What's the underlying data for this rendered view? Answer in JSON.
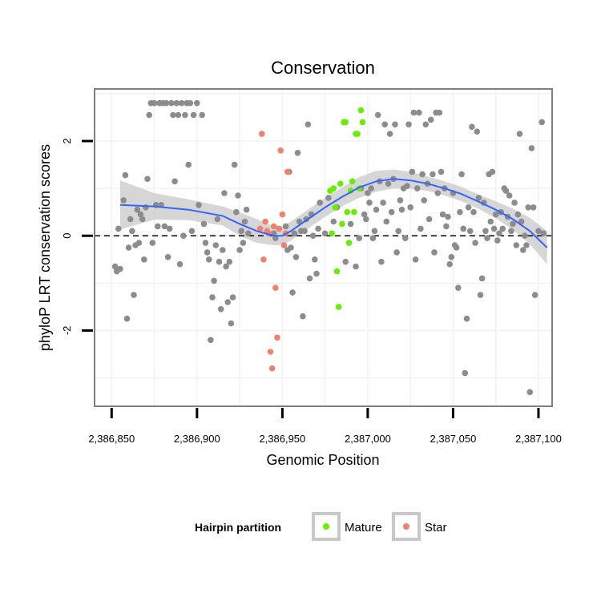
{
  "chart_data": {
    "type": "scatter",
    "title": "Conservation",
    "xlabel": "Genomic Position",
    "ylabel": "phyloP LRT conservation scores",
    "xlim": [
      2386840,
      2387108
    ],
    "ylim": [
      -3.6,
      3.1
    ],
    "x_ticks": [
      2386850,
      2386900,
      2386950,
      2387000,
      2387050,
      2387100
    ],
    "x_tick_labels": [
      "2,386,850",
      "2,386,900",
      "2,386,950",
      "2,387,000",
      "2,387,050",
      "2,387,100"
    ],
    "y_ticks": [
      -2,
      0,
      2
    ],
    "y_tick_labels": [
      "-2",
      "0",
      "2"
    ],
    "reference_line": {
      "y": 0,
      "style": "dashed"
    },
    "legend": {
      "title": "Hairpin partition",
      "position": "bottom",
      "entries": [
        {
          "label": "Mature",
          "color": "#66ee00"
        },
        {
          "label": "Star",
          "color": "#f08070"
        }
      ]
    },
    "colors": {
      "other": "#8c8c8c",
      "Mature": "#66ee00",
      "Star": "#f08070",
      "smooth": "#3366ff",
      "band": "#c8c8c8"
    },
    "series": [
      {
        "name": "Other",
        "points": [
          [
            2386852,
            -0.65
          ],
          [
            2386853,
            -0.75
          ],
          [
            2386854,
            0.15
          ],
          [
            2386855,
            -0.7
          ],
          [
            2386857,
            0.75
          ],
          [
            2386858,
            1.28
          ],
          [
            2386859,
            -1.75
          ],
          [
            2386860,
            -0.25
          ],
          [
            2386861,
            0.35
          ],
          [
            2386862,
            0.1
          ],
          [
            2386863,
            -1.25
          ],
          [
            2386864,
            -0.2
          ],
          [
            2386865,
            0.55
          ],
          [
            2386866,
            -0.15
          ],
          [
            2386867,
            0.45
          ],
          [
            2386868,
            0.35
          ],
          [
            2386869,
            -0.5
          ],
          [
            2386870,
            0.6
          ],
          [
            2386871,
            1.2
          ],
          [
            2386872,
            2.55
          ],
          [
            2386873,
            2.8
          ],
          [
            2386874,
            -0.15
          ],
          [
            2386875,
            2.8
          ],
          [
            2386876,
            0.65
          ],
          [
            2386877,
            0.2
          ],
          [
            2386878,
            2.8
          ],
          [
            2386879,
            0.65
          ],
          [
            2386880,
            2.8
          ],
          [
            2386881,
            0.2
          ],
          [
            2386882,
            2.8
          ],
          [
            2386883,
            -0.45
          ],
          [
            2386884,
            0.15
          ],
          [
            2386885,
            2.8
          ],
          [
            2386886,
            2.55
          ],
          [
            2386887,
            1.15
          ],
          [
            2386888,
            2.8
          ],
          [
            2386889,
            2.55
          ],
          [
            2386890,
            -0.6
          ],
          [
            2386891,
            2.8
          ],
          [
            2386892,
            0.0
          ],
          [
            2386893,
            2.55
          ],
          [
            2386894,
            2.8
          ],
          [
            2386895,
            1.5
          ],
          [
            2386896,
            2.8
          ],
          [
            2386897,
            0.1
          ],
          [
            2386898,
            2.55
          ],
          [
            2386900,
            2.8
          ],
          [
            2386901,
            0.65
          ],
          [
            2386903,
            2.55
          ],
          [
            2386904,
            0.25
          ],
          [
            2386905,
            -0.15
          ],
          [
            2386906,
            -0.35
          ],
          [
            2386907,
            -0.5
          ],
          [
            2386908,
            -2.2
          ],
          [
            2386909,
            -1.3
          ],
          [
            2386910,
            -0.95
          ],
          [
            2386911,
            -0.2
          ],
          [
            2386912,
            0.35
          ],
          [
            2386913,
            -0.55
          ],
          [
            2386914,
            -1.55
          ],
          [
            2386915,
            -0.3
          ],
          [
            2386916,
            0.9
          ],
          [
            2386917,
            -0.65
          ],
          [
            2386918,
            -1.4
          ],
          [
            2386919,
            -0.55
          ],
          [
            2386920,
            -1.85
          ],
          [
            2386921,
            -1.3
          ],
          [
            2386922,
            1.5
          ],
          [
            2386923,
            0.5
          ],
          [
            2386924,
            0.85
          ],
          [
            2386925,
            -0.3
          ],
          [
            2386926,
            0.1
          ],
          [
            2386927,
            -0.15
          ],
          [
            2386928,
            0.3
          ],
          [
            2386929,
            0.55
          ],
          [
            2386930,
            0.05
          ],
          [
            2386945,
            0.05
          ],
          [
            2386946,
            -0.05
          ],
          [
            2386948,
            0.15
          ],
          [
            2386952,
            0.2
          ],
          [
            2386953,
            -0.3
          ],
          [
            2386954,
            1.35
          ],
          [
            2386955,
            -0.25
          ],
          [
            2386956,
            -1.2
          ],
          [
            2386957,
            0.05
          ],
          [
            2386958,
            -0.45
          ],
          [
            2386959,
            1.75
          ],
          [
            2386960,
            0.3
          ],
          [
            2386961,
            0.1
          ],
          [
            2386962,
            -1.7
          ],
          [
            2386963,
            0.1
          ],
          [
            2386964,
            0.35
          ],
          [
            2386965,
            2.35
          ],
          [
            2386966,
            -0.9
          ],
          [
            2386967,
            0.45
          ],
          [
            2386968,
            0.0
          ],
          [
            2386969,
            -0.5
          ],
          [
            2386970,
            -0.8
          ],
          [
            2386971,
            0.15
          ],
          [
            2386972,
            0.7
          ],
          [
            2386975,
            0.05
          ],
          [
            2386977,
            0.8
          ],
          [
            2386980,
            0.3
          ],
          [
            2386982,
            0.6
          ],
          [
            2386987,
            -0.55
          ],
          [
            2386990,
            0.25
          ],
          [
            2386993,
            -0.65
          ],
          [
            2386995,
            -0.05
          ],
          [
            2386996,
            1.0
          ],
          [
            2386998,
            0.45
          ],
          [
            2386999,
            0.35
          ],
          [
            2387000,
            0.9
          ],
          [
            2387001,
            0.7
          ],
          [
            2387002,
            1.0
          ],
          [
            2387003,
            -0.05
          ],
          [
            2387004,
            0.1
          ],
          [
            2387005,
            0.55
          ],
          [
            2387006,
            2.55
          ],
          [
            2387007,
            1.15
          ],
          [
            2387008,
            -0.55
          ],
          [
            2387009,
            0.7
          ],
          [
            2387010,
            2.35
          ],
          [
            2387011,
            0.3
          ],
          [
            2387012,
            1.1
          ],
          [
            2387013,
            2.15
          ],
          [
            2387014,
            0.5
          ],
          [
            2387015,
            1.2
          ],
          [
            2387016,
            2.35
          ],
          [
            2387017,
            -0.35
          ],
          [
            2387018,
            0.1
          ],
          [
            2387019,
            0.75
          ],
          [
            2387020,
            0.55
          ],
          [
            2387021,
            1.0
          ],
          [
            2387022,
            -0.05
          ],
          [
            2387023,
            1.05
          ],
          [
            2387024,
            2.35
          ],
          [
            2387025,
            0.6
          ],
          [
            2387026,
            1.35
          ],
          [
            2387027,
            2.6
          ],
          [
            2387028,
            -0.5
          ],
          [
            2387029,
            1.0
          ],
          [
            2387030,
            2.6
          ],
          [
            2387031,
            0.15
          ],
          [
            2387032,
            1.3
          ],
          [
            2387033,
            0.75
          ],
          [
            2387034,
            2.35
          ],
          [
            2387035,
            1.1
          ],
          [
            2387036,
            0.35
          ],
          [
            2387037,
            2.45
          ],
          [
            2387038,
            1.3
          ],
          [
            2387039,
            -0.35
          ],
          [
            2387040,
            2.6
          ],
          [
            2387041,
            0.9
          ],
          [
            2387042,
            2.6
          ],
          [
            2387043,
            1.35
          ],
          [
            2387044,
            0.45
          ],
          [
            2387045,
            1.0
          ],
          [
            2387046,
            0.2
          ],
          [
            2387047,
            0.4
          ],
          [
            2387048,
            -0.6
          ],
          [
            2387049,
            -0.45
          ],
          [
            2387050,
            0.9
          ],
          [
            2387051,
            -0.2
          ],
          [
            2387052,
            -0.25
          ],
          [
            2387053,
            -1.1
          ],
          [
            2387054,
            0.5
          ],
          [
            2387055,
            1.3
          ],
          [
            2387056,
            0.15
          ],
          [
            2387057,
            -2.9
          ],
          [
            2387058,
            -1.75
          ],
          [
            2387059,
            0.6
          ],
          [
            2387060,
            0.1
          ],
          [
            2387061,
            2.3
          ],
          [
            2387062,
            0.5
          ],
          [
            2387063,
            -0.15
          ],
          [
            2387064,
            2.2
          ],
          [
            2387065,
            0.8
          ],
          [
            2387066,
            -1.25
          ],
          [
            2387067,
            -0.9
          ],
          [
            2387068,
            0.7
          ],
          [
            2387069,
            0.1
          ],
          [
            2387070,
            -0.05
          ],
          [
            2387071,
            1.3
          ],
          [
            2387072,
            0.3
          ],
          [
            2387073,
            1.35
          ],
          [
            2387074,
            0.15
          ],
          [
            2387075,
            0.45
          ],
          [
            2387076,
            -0.1
          ],
          [
            2387077,
            0.05
          ],
          [
            2387078,
            0.5
          ],
          [
            2387079,
            0.15
          ],
          [
            2387080,
            1.0
          ],
          [
            2387081,
            0.95
          ],
          [
            2387082,
            0.4
          ],
          [
            2387083,
            0.85
          ],
          [
            2387084,
            0.1
          ],
          [
            2387085,
            0.25
          ],
          [
            2387086,
            0.7
          ],
          [
            2387087,
            -0.2
          ],
          [
            2387088,
            0.45
          ],
          [
            2387089,
            2.15
          ],
          [
            2387090,
            0.3
          ],
          [
            2387091,
            -0.3
          ],
          [
            2387092,
            0.0
          ],
          [
            2387093,
            -0.2
          ],
          [
            2387094,
            0.6
          ],
          [
            2387095,
            -3.3
          ],
          [
            2387096,
            1.85
          ],
          [
            2387097,
            0.6
          ],
          [
            2387098,
            -1.25
          ],
          [
            2387100,
            0.1
          ],
          [
            2387102,
            2.4
          ],
          [
            2387103,
            0.05
          ]
        ]
      },
      {
        "name": "Mature",
        "points": [
          [
            2386978,
            0.95
          ],
          [
            2386979,
            0.05
          ],
          [
            2386980,
            1.0
          ],
          [
            2386981,
            0.6
          ],
          [
            2386982,
            -0.75
          ],
          [
            2386983,
            -1.5
          ],
          [
            2386984,
            1.1
          ],
          [
            2386985,
            0.25
          ],
          [
            2386986,
            2.4
          ],
          [
            2386987,
            2.4
          ],
          [
            2386988,
            0.5
          ],
          [
            2386989,
            -0.15
          ],
          [
            2386990,
            0.95
          ],
          [
            2386991,
            1.15
          ],
          [
            2386992,
            0.5
          ],
          [
            2386993,
            2.15
          ],
          [
            2386994,
            2.15
          ],
          [
            2386995,
            1.0
          ],
          [
            2386996,
            2.65
          ],
          [
            2386997,
            2.4
          ]
        ]
      },
      {
        "name": "Star",
        "points": [
          [
            2386937,
            0.15
          ],
          [
            2386938,
            2.15
          ],
          [
            2386939,
            -0.5
          ],
          [
            2386940,
            0.3
          ],
          [
            2386941,
            0.1
          ],
          [
            2386942,
            0.05
          ],
          [
            2386943,
            -2.45
          ],
          [
            2386944,
            -2.8
          ],
          [
            2386945,
            0.2
          ],
          [
            2386946,
            -1.1
          ],
          [
            2386947,
            -2.15
          ],
          [
            2386948,
            0.15
          ],
          [
            2386949,
            1.8
          ],
          [
            2386950,
            0.45
          ],
          [
            2386951,
            -0.2
          ],
          [
            2386952,
            0.05
          ],
          [
            2386953,
            1.35
          ]
        ]
      }
    ],
    "smooth": {
      "x": [
        2386855,
        2386875,
        2386895,
        2386915,
        2386925,
        2386935,
        2386945,
        2386950,
        2386955,
        2386965,
        2386975,
        2386985,
        2386995,
        2387005,
        2387015,
        2387025,
        2387035,
        2387045,
        2387055,
        2387065,
        2387075,
        2387085,
        2387095,
        2387105
      ],
      "y": [
        0.65,
        0.62,
        0.55,
        0.42,
        0.25,
        0.1,
        0.0,
        0.0,
        0.1,
        0.35,
        0.6,
        0.82,
        1.02,
        1.15,
        1.2,
        1.17,
        1.1,
        1.0,
        0.88,
        0.72,
        0.55,
        0.35,
        0.1,
        -0.25
      ],
      "band": [
        0.52,
        0.28,
        0.22,
        0.2,
        0.25,
        0.25,
        0.2,
        0.2,
        0.2,
        0.2,
        0.2,
        0.2,
        0.22,
        0.22,
        0.2,
        0.18,
        0.15,
        0.15,
        0.15,
        0.15,
        0.18,
        0.22,
        0.28,
        0.35
      ]
    }
  }
}
